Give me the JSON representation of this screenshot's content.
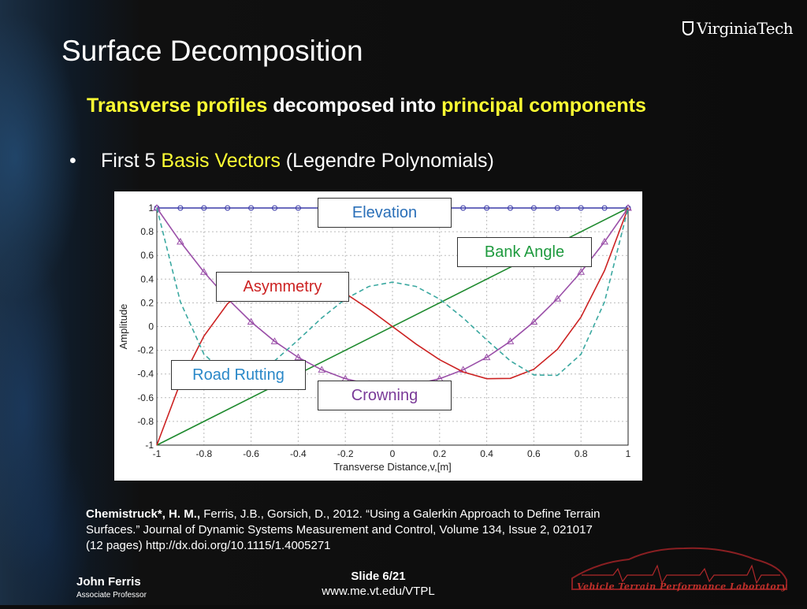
{
  "slide": {
    "title": "Surface Decomposition",
    "subtitle_part1": "Transverse profiles",
    "subtitle_part2": " decomposed into ",
    "subtitle_part3": "principal components",
    "bullet_char": "•",
    "bullet_part1": "First 5 ",
    "bullet_part2": "Basis Vectors",
    "bullet_part3": " (Legendre Polynomials)",
    "logo_text": "VirginiaTech",
    "citation_bold": "Chemistruck*, H. M.,",
    "citation_rest": " Ferris, J.B., Gorsich, D., 2012. “Using a Galerkin Approach to Define Terrain Surfaces.”  Journal of Dynamic Systems Measurement and Control, Volume 134,  Issue 2, 021017 (12 pages) http://dx.doi.org/10.1115/1.4005271",
    "author_name": "John Ferris",
    "author_role": "Associate Professor",
    "slide_number": "Slide 6/21",
    "url": "www.me.vt.edu/VTPL",
    "lab_name": "Vehicle Terrain Performance Laboratory"
  },
  "callouts": {
    "elevation": "Elevation",
    "bank_angle": "Bank Angle",
    "asymmetry": "Asymmetry",
    "road_rutting": "Road Rutting",
    "crowning": "Crowning"
  },
  "chart_data": {
    "type": "line",
    "xlabel": "Transverse Distance,v,[m]",
    "ylabel": "Amplitude",
    "xlim": [
      -1,
      1
    ],
    "ylim": [
      -1,
      1
    ],
    "x_ticks": [
      -1,
      -0.8,
      -0.6,
      -0.4,
      -0.2,
      0,
      0.2,
      0.4,
      0.6,
      0.8,
      1
    ],
    "y_ticks": [
      1,
      0.8,
      0.6,
      0.4,
      0.2,
      0,
      -0.2,
      -0.4,
      -0.6,
      -0.8,
      -1
    ],
    "grid": true,
    "series": [
      {
        "name": "Elevation",
        "color": "#3a3aa8",
        "marker": "circle",
        "dash": false,
        "x": [
          -1,
          -0.9,
          -0.8,
          -0.7,
          -0.6,
          -0.5,
          -0.4,
          -0.3,
          -0.2,
          -0.1,
          0,
          0.1,
          0.2,
          0.3,
          0.4,
          0.5,
          0.6,
          0.7,
          0.8,
          0.9,
          1
        ],
        "y": [
          1,
          1,
          1,
          1,
          1,
          1,
          1,
          1,
          1,
          1,
          1,
          1,
          1,
          1,
          1,
          1,
          1,
          1,
          1,
          1,
          1
        ]
      },
      {
        "name": "Bank Angle",
        "color": "#1e8a2e",
        "marker": "none",
        "dash": false,
        "x": [
          -1,
          1
        ],
        "y": [
          -1,
          1
        ]
      },
      {
        "name": "Crowning",
        "color": "#9a4fa8",
        "marker": "triangle",
        "dash": false,
        "x": [
          -1,
          -0.9,
          -0.8,
          -0.7,
          -0.6,
          -0.5,
          -0.4,
          -0.3,
          -0.2,
          -0.1,
          0,
          0.1,
          0.2,
          0.3,
          0.4,
          0.5,
          0.6,
          0.7,
          0.8,
          0.9,
          1
        ],
        "y": [
          1,
          0.715,
          0.46,
          0.235,
          0.04,
          -0.125,
          -0.26,
          -0.365,
          -0.44,
          -0.485,
          -0.5,
          -0.485,
          -0.44,
          -0.365,
          -0.26,
          -0.125,
          0.04,
          0.235,
          0.46,
          0.715,
          1
        ]
      },
      {
        "name": "Asymmetry",
        "color": "#cc2222",
        "marker": "none",
        "dash": false,
        "x": [
          -1,
          -0.9,
          -0.8,
          -0.7,
          -0.6,
          -0.5,
          -0.4,
          -0.3,
          -0.2,
          -0.1,
          0,
          0.1,
          0.2,
          0.3,
          0.4,
          0.5,
          0.6,
          0.7,
          0.8,
          0.9,
          1
        ],
        "y": [
          -1,
          -0.4725,
          -0.08,
          0.1925,
          0.36,
          0.4375,
          0.44,
          0.3825,
          0.28,
          0.1475,
          0,
          -0.1475,
          -0.28,
          -0.3825,
          -0.44,
          -0.4375,
          -0.36,
          -0.1925,
          0.08,
          0.4725,
          1
        ]
      },
      {
        "name": "Road Rutting",
        "color": "#3aa8a0",
        "marker": "none",
        "dash": true,
        "x": [
          -1,
          -0.9,
          -0.8,
          -0.7,
          -0.6,
          -0.5,
          -0.4,
          -0.3,
          -0.2,
          -0.1,
          0,
          0.1,
          0.2,
          0.3,
          0.4,
          0.5,
          0.6,
          0.7,
          0.8,
          0.9,
          1
        ],
        "y": [
          1,
          0.2079,
          -0.233,
          -0.4121,
          -0.408,
          -0.2891,
          -0.113,
          0.0729,
          0.232,
          0.3379,
          0.375,
          0.3379,
          0.232,
          0.0729,
          -0.113,
          -0.2891,
          -0.408,
          -0.4121,
          -0.233,
          0.2079,
          1
        ]
      }
    ]
  }
}
